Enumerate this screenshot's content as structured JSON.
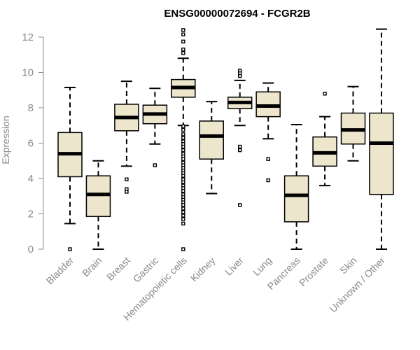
{
  "chart_data": {
    "type": "boxplot",
    "title": "ENSG00000072694 - FCGR2B",
    "xlabel": "",
    "ylabel": "Expression",
    "ylim": [
      0,
      12.5
    ],
    "yticks": [
      0,
      2,
      4,
      6,
      8,
      10,
      12
    ],
    "grid": false,
    "colors": {
      "box_fill": "#ede6cc",
      "box_edge": "#000000",
      "axis": "#8a8a8a"
    },
    "categories": [
      "Bladder",
      "Brain",
      "Breast",
      "Gastric",
      "Hematopoietic cells",
      "Kidney",
      "Liver",
      "Lung",
      "Pancreas",
      "Prostate",
      "Skin",
      "Unknown / Other"
    ],
    "boxes": [
      {
        "category": "Bladder",
        "whisker_low": 1.45,
        "q1": 4.1,
        "median": 5.4,
        "q3": 6.6,
        "whisker_high": 9.15,
        "outliers": [
          0.0
        ]
      },
      {
        "category": "Brain",
        "whisker_low": 0.0,
        "q1": 1.85,
        "median": 3.1,
        "q3": 4.15,
        "whisker_high": 5.0,
        "outliers": []
      },
      {
        "category": "Breast",
        "whisker_low": 4.7,
        "q1": 6.7,
        "median": 7.45,
        "q3": 8.2,
        "whisker_high": 9.5,
        "outliers": [
          3.95,
          3.4,
          3.25
        ]
      },
      {
        "category": "Gastric",
        "whisker_low": 5.95,
        "q1": 7.1,
        "median": 7.65,
        "q3": 8.15,
        "whisker_high": 9.1,
        "outliers": [
          4.75
        ]
      },
      {
        "category": "Hematopoietic cells",
        "whisker_low": 7.0,
        "q1": 8.6,
        "median": 9.15,
        "q3": 9.6,
        "whisker_high": 10.8,
        "outliers": [
          12.4,
          12.15,
          11.75,
          11.3,
          11.1,
          6.95,
          6.75,
          6.5,
          6.3,
          6.1,
          5.95,
          5.8,
          5.6,
          5.4,
          5.25,
          5.1,
          4.9,
          4.75,
          4.6,
          4.45,
          4.3,
          4.15,
          3.95,
          3.8,
          3.6,
          3.45,
          3.3,
          3.1,
          2.95,
          2.8,
          2.65,
          2.5,
          2.3,
          2.1,
          1.9,
          1.7,
          1.45,
          0.0
        ]
      },
      {
        "category": "Kidney",
        "whisker_low": 3.15,
        "q1": 5.1,
        "median": 6.4,
        "q3": 7.25,
        "whisker_high": 8.35,
        "outliers": []
      },
      {
        "category": "Liver",
        "whisker_low": 7.0,
        "q1": 7.95,
        "median": 8.3,
        "q3": 8.6,
        "whisker_high": 9.55,
        "outliers": [
          10.1,
          9.95,
          9.8,
          5.8,
          5.6,
          2.5
        ]
      },
      {
        "category": "Lung",
        "whisker_low": 6.25,
        "q1": 7.5,
        "median": 8.1,
        "q3": 8.9,
        "whisker_high": 9.4,
        "outliers": [
          5.1,
          3.9
        ]
      },
      {
        "category": "Pancreas",
        "whisker_low": 0.0,
        "q1": 1.55,
        "median": 3.05,
        "q3": 4.15,
        "whisker_high": 7.05,
        "outliers": []
      },
      {
        "category": "Prostate",
        "whisker_low": 3.6,
        "q1": 4.7,
        "median": 5.45,
        "q3": 6.35,
        "whisker_high": 7.5,
        "outliers": [
          8.8
        ]
      },
      {
        "category": "Skin",
        "whisker_low": 5.0,
        "q1": 5.95,
        "median": 6.75,
        "q3": 7.7,
        "whisker_high": 9.2,
        "outliers": []
      },
      {
        "category": "Unknown / Other",
        "whisker_low": 0.0,
        "q1": 3.1,
        "median": 6.0,
        "q3": 7.7,
        "whisker_high": 12.45,
        "outliers": []
      }
    ]
  }
}
